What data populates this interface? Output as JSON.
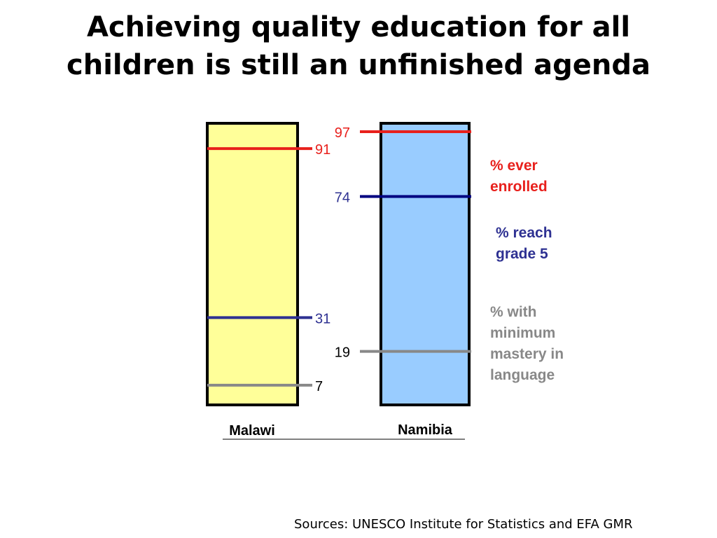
{
  "title": {
    "line1": "Achieving quality education for all",
    "line2": "children is still an unfinished agenda"
  },
  "source": "Sources: UNESCO Institute for Statistics and EFA GMR",
  "colors": {
    "malawi_fill": "#FFFF99",
    "namibia_fill": "#99CCFF",
    "ever_enrolled": "#E8201C",
    "reach_grade5": "#2E3192",
    "min_mastery": "#888888",
    "namibia_reach_grade5": "#000080"
  },
  "chart_data": {
    "type": "bar",
    "categories": [
      "Malawi",
      "Namibia"
    ],
    "ylim": [
      0,
      100
    ],
    "series": [
      {
        "name": "% ever enrolled",
        "values": [
          91,
          97
        ],
        "color": "#E8201C"
      },
      {
        "name": "% reach grade 5",
        "values": [
          31,
          74
        ],
        "color": "#2E3192"
      },
      {
        "name": "% with minimum mastery in language",
        "values": [
          7,
          19
        ],
        "color": "#888888"
      }
    ]
  },
  "legend": {
    "ever_enrolled": [
      "% ever",
      "enrolled"
    ],
    "reach_grade5": [
      "% reach",
      "grade 5"
    ],
    "min_mastery": [
      "% with",
      "minimum",
      "mastery in",
      "language"
    ]
  }
}
